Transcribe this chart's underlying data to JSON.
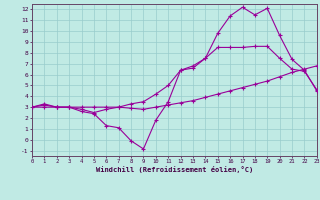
{
  "bg_color": "#c0eae4",
  "grid_color": "#99cccc",
  "line_color": "#990099",
  "xlim": [
    0,
    23
  ],
  "ylim": [
    -1.5,
    12.5
  ],
  "xticks": [
    0,
    1,
    2,
    3,
    4,
    5,
    6,
    7,
    8,
    9,
    10,
    11,
    12,
    13,
    14,
    15,
    16,
    17,
    18,
    19,
    20,
    21,
    22,
    23
  ],
  "yticks": [
    -1,
    0,
    1,
    2,
    3,
    4,
    5,
    6,
    7,
    8,
    9,
    10,
    11,
    12
  ],
  "xlabel": "Windchill (Refroidissement éolien,°C)",
  "series1_x": [
    0,
    1,
    2,
    3,
    4,
    5,
    6,
    7,
    8,
    9,
    10,
    11,
    12,
    13,
    14,
    15,
    16,
    17,
    18,
    19,
    20,
    21,
    22,
    23
  ],
  "series1_y": [
    3.0,
    3.3,
    3.0,
    3.0,
    2.6,
    2.4,
    1.3,
    1.1,
    -0.1,
    -0.85,
    1.8,
    3.5,
    6.4,
    6.6,
    7.5,
    9.8,
    11.4,
    12.2,
    11.5,
    12.1,
    9.6,
    7.4,
    6.4,
    4.5
  ],
  "series2_x": [
    0,
    1,
    2,
    3,
    4,
    5,
    6,
    7,
    8,
    9,
    10,
    11,
    12,
    13,
    14,
    15,
    16,
    17,
    18,
    19,
    20,
    21,
    22,
    23
  ],
  "series2_y": [
    3.0,
    3.2,
    3.0,
    3.0,
    2.8,
    2.5,
    2.8,
    3.0,
    3.3,
    3.5,
    4.2,
    5.0,
    6.4,
    6.8,
    7.5,
    8.5,
    8.5,
    8.5,
    8.6,
    8.6,
    7.5,
    6.5,
    6.3,
    4.6
  ],
  "series3_x": [
    0,
    1,
    2,
    3,
    4,
    5,
    6,
    7,
    8,
    9,
    10,
    11,
    12,
    13,
    14,
    15,
    16,
    17,
    18,
    19,
    20,
    21,
    22,
    23
  ],
  "series3_y": [
    3.0,
    3.0,
    3.0,
    3.0,
    3.0,
    3.0,
    3.0,
    3.0,
    2.9,
    2.8,
    3.0,
    3.2,
    3.4,
    3.6,
    3.9,
    4.2,
    4.5,
    4.8,
    5.1,
    5.4,
    5.8,
    6.2,
    6.5,
    6.8
  ]
}
